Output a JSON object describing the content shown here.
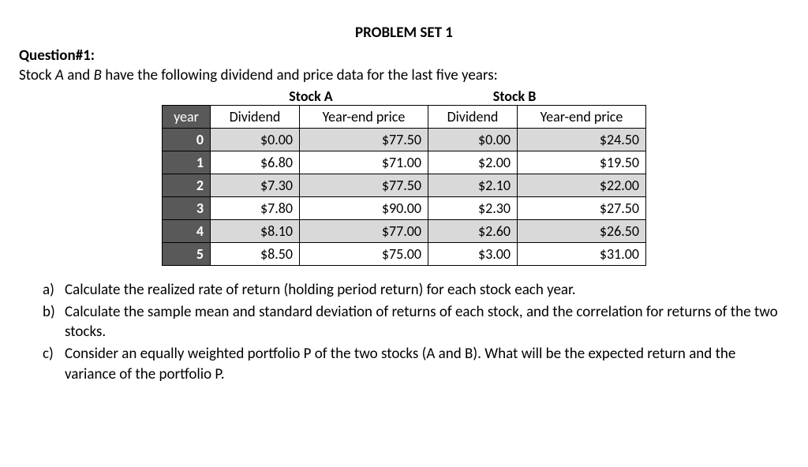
{
  "title": "PROBLEM SET 1",
  "question_label": "Question#1:",
  "intro_prefix": "Stock ",
  "intro_a": "A",
  "intro_mid": " and ",
  "intro_b": "B",
  "intro_suffix": " have the following dividend and price data for the last five years:",
  "group_headers": {
    "a": "Stock A",
    "b": "Stock B"
  },
  "columns": {
    "year": "year",
    "dividend": "Dividend",
    "price": "Year-end price"
  },
  "rows": [
    {
      "year": "0",
      "a_div": "$0.00",
      "a_price": "$77.50",
      "b_div": "$0.00",
      "b_price": "$24.50"
    },
    {
      "year": "1",
      "a_div": "$6.80",
      "a_price": "$71.00",
      "b_div": "$2.00",
      "b_price": "$19.50"
    },
    {
      "year": "2",
      "a_div": "$7.30",
      "a_price": "$77.50",
      "b_div": "$2.10",
      "b_price": "$22.00"
    },
    {
      "year": "3",
      "a_div": "$7.80",
      "a_price": "$90.00",
      "b_div": "$2.30",
      "b_price": "$27.50"
    },
    {
      "year": "4",
      "a_div": "$8.10",
      "a_price": "$77.00",
      "b_div": "$2.60",
      "b_price": "$26.50"
    },
    {
      "year": "5",
      "a_div": "$8.50",
      "a_price": "$75.00",
      "b_div": "$3.00",
      "b_price": "$31.00"
    }
  ],
  "parts": {
    "a": {
      "letter": "a)",
      "text": "Calculate the realized rate of return (holding period return) for each stock each year."
    },
    "b": {
      "letter": "b)",
      "text": "Calculate the sample mean and standard deviation of returns of each stock, and the correlation for returns of the two stocks."
    },
    "c": {
      "letter": "c)",
      "text": "Consider an equally weighted portfolio P of the two stocks (A and B). What will be the expected return and the variance of the portfolio P."
    }
  },
  "table_style": {
    "header_bg": "#595959",
    "header_fg": "#ffffff",
    "row_even_bg": "#d9d9d9",
    "row_odd_bg": "#ffffff",
    "border_color": "#000000"
  }
}
